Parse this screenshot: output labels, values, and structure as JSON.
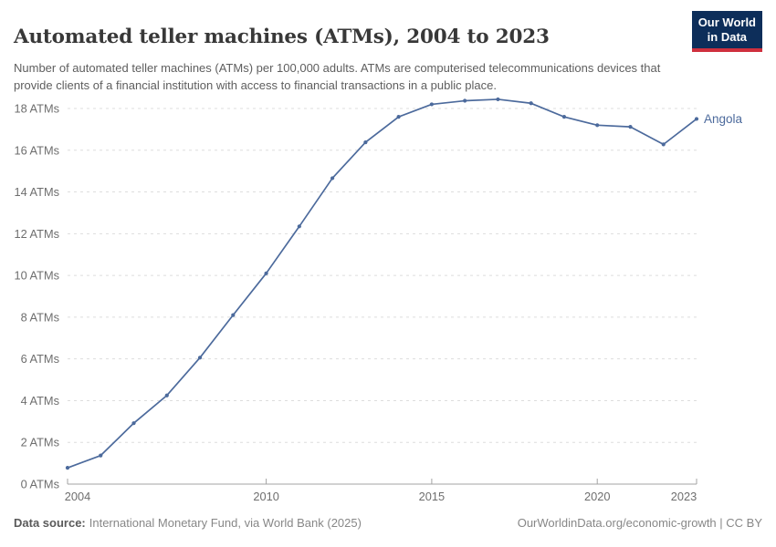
{
  "header": {
    "title": "Automated teller machines (ATMs), 2004 to 2023",
    "subtitle": "Number of automated teller machines (ATMs) per 100,000 adults. ATMs are computerised telecommunications devices that provide clients of a financial institution with access to financial transactions in a public place.",
    "logo": {
      "line1": "Our World",
      "line2": "in Data"
    }
  },
  "chart_data": {
    "type": "line",
    "title": "Automated teller machines (ATMs), 2004 to 2023",
    "xlabel": "",
    "ylabel": "ATMs per 100,000 adults",
    "x": [
      2004,
      2005,
      2006,
      2007,
      2008,
      2009,
      2010,
      2011,
      2012,
      2013,
      2014,
      2015,
      2016,
      2017,
      2018,
      2019,
      2020,
      2021,
      2022,
      2023
    ],
    "series": [
      {
        "name": "Angola",
        "color": "#4c6a9c",
        "values": [
          0.78,
          1.37,
          2.92,
          4.25,
          6.06,
          8.1,
          10.1,
          12.35,
          14.66,
          16.38,
          17.6,
          18.2,
          18.37,
          18.44,
          18.25,
          17.6,
          17.2,
          17.12,
          16.28,
          17.5
        ]
      }
    ],
    "ylim": [
      0,
      18
    ],
    "yticks": [
      0,
      2,
      4,
      6,
      8,
      10,
      12,
      14,
      16,
      18
    ],
    "ytick_suffix": " ATMs",
    "xticks": [
      2004,
      2010,
      2015,
      2020,
      2023
    ],
    "grid": "horizontal-dashed",
    "legend": "end-of-line-label"
  },
  "colors": {
    "line": "#4c6a9c",
    "grid": "#dddddd",
    "axis": "#a3a3a3",
    "tick_label": "#6e6e6e"
  },
  "footer": {
    "source_label": "Data source:",
    "source_text": "International Monetary Fund, via World Bank (2025)",
    "right_text": "OurWorldinData.org/economic-growth | CC BY"
  }
}
